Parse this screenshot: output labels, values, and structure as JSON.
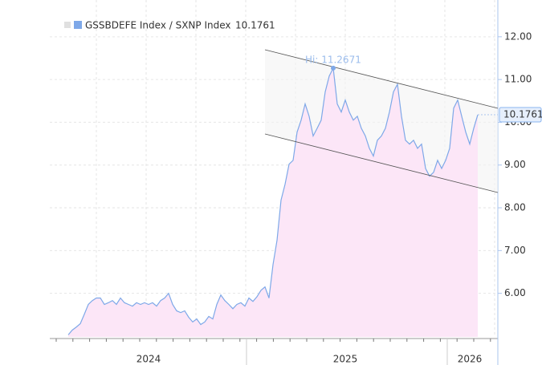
{
  "chart_data": {
    "type": "area",
    "title": null,
    "categories": [
      null,
      null,
      null,
      null,
      null,
      null,
      null,
      null,
      null,
      null,
      null,
      null,
      null,
      null,
      null,
      null,
      null,
      null,
      null,
      null,
      "2024",
      null,
      null,
      null,
      null,
      null,
      null,
      null,
      null,
      null,
      null,
      null,
      null,
      null,
      null,
      null,
      null,
      null,
      null,
      null,
      null,
      null,
      null,
      null,
      null,
      null,
      null,
      null,
      null,
      null,
      null,
      null,
      null,
      null,
      null,
      null,
      null,
      null,
      null,
      null,
      null,
      null,
      null,
      null,
      null,
      null,
      null,
      null,
      null,
      "2025",
      null,
      null,
      null,
      null,
      null,
      null,
      null,
      null,
      null,
      null,
      null,
      null,
      null,
      null,
      null,
      null,
      null,
      null,
      null,
      null,
      null,
      null,
      null,
      null,
      null,
      null,
      null,
      null,
      null,
      null,
      "2026",
      null,
      null
    ],
    "series": [
      {
        "name": "GSSBDEFE Index / SXNP Index",
        "color": "#7ea8e8",
        "fill": "#fce6f7",
        "values": [
          5.03,
          5.14,
          5.21,
          5.29,
          5.51,
          5.74,
          5.83,
          5.89,
          5.89,
          5.74,
          5.78,
          5.83,
          5.74,
          5.89,
          5.78,
          5.74,
          5.7,
          5.78,
          5.74,
          5.78,
          5.74,
          5.78,
          5.7,
          5.83,
          5.89,
          6.0,
          5.74,
          5.59,
          5.55,
          5.59,
          5.44,
          5.33,
          5.4,
          5.27,
          5.33,
          5.46,
          5.4,
          5.74,
          5.96,
          5.83,
          5.74,
          5.64,
          5.74,
          5.78,
          5.7,
          5.89,
          5.81,
          5.92,
          6.07,
          6.15,
          5.89,
          6.67,
          7.24,
          8.18,
          8.55,
          9.02,
          9.11,
          9.77,
          10.05,
          10.43,
          10.14,
          9.68,
          9.86,
          10.05,
          10.71,
          11.08,
          11.2671,
          10.43,
          10.24,
          10.52,
          10.24,
          10.05,
          10.14,
          9.86,
          9.68,
          9.39,
          9.21,
          9.58,
          9.68,
          9.86,
          10.24,
          10.71,
          10.89,
          10.14,
          9.58,
          9.49,
          9.58,
          9.39,
          9.49,
          8.92,
          8.74,
          8.83,
          9.11,
          8.92,
          9.11,
          9.39,
          10.33,
          10.52,
          10.14,
          9.77,
          9.49,
          9.86,
          10.1761
        ]
      }
    ],
    "annotation": "Hi: 11.2671",
    "ylim": [
      4.98,
      12.86
    ],
    "yticks": [
      {
        "value": 6,
        "label": "6.00"
      },
      {
        "value": 7,
        "label": "7.00"
      },
      {
        "value": 8,
        "label": "8.00"
      },
      {
        "value": 9,
        "label": "9.00"
      },
      {
        "value": 10,
        "label": "10.00"
      },
      {
        "value": 11,
        "label": "11.00"
      },
      {
        "value": 12,
        "label": "12.00"
      }
    ],
    "grid": true
  }
}
